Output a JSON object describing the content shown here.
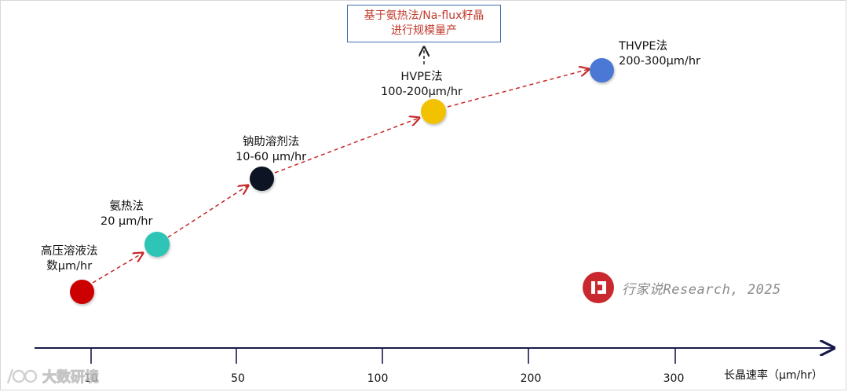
{
  "note": {
    "line1": "基于氨热法/Na-flux籽晶",
    "line2": "进行规模量产",
    "color": "#c0392b",
    "border": "#3f6fb0"
  },
  "methods": [
    {
      "name": "高压溶液法",
      "rate": "数μm/hr",
      "color": "#cc0000"
    },
    {
      "name": "氨热法",
      "rate": "20 μm/hr",
      "color": "#2ec4b6"
    },
    {
      "name": "钠助溶剂法",
      "rate": "10-60 μm/hr",
      "color": "#0d1424"
    },
    {
      "name": "HVPE法",
      "rate": "100-200μm/hr",
      "color": "#f2c200"
    },
    {
      "name": "THVPE法",
      "rate": "200-300μm/hr",
      "color": "#4a78d4"
    }
  ],
  "axis": {
    "title": "长晶速率（μm/hr）",
    "ticks": [
      "10",
      "50",
      "100",
      "200",
      "300"
    ],
    "color": "#1a1a4a"
  },
  "arrow_color": "#c62828",
  "brand": {
    "text": "行家说Research, 2025",
    "logo_color": "#c8282e"
  },
  "watermark": {
    "text": "大数研境"
  }
}
